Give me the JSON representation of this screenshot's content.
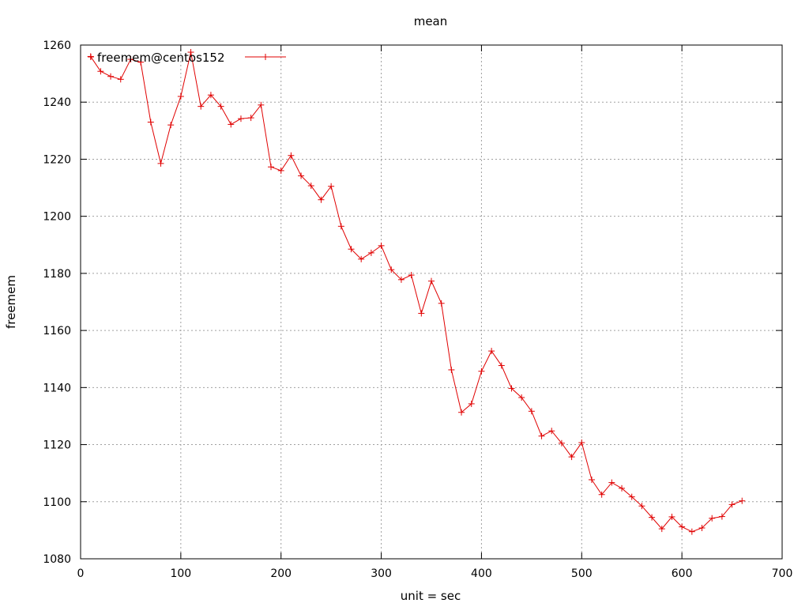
{
  "chart_data": {
    "type": "line",
    "title": "mean",
    "xlabel": "unit = sec",
    "ylabel": "freemem",
    "xlim": [
      0,
      700
    ],
    "ylim": [
      1080,
      1260
    ],
    "xticks": [
      0,
      100,
      200,
      300,
      400,
      500,
      600,
      700
    ],
    "yticks": [
      1080,
      1100,
      1120,
      1140,
      1160,
      1180,
      1200,
      1220,
      1240,
      1260
    ],
    "grid": true,
    "legend_position": "top-left",
    "series": [
      {
        "name": "freemem@centos152",
        "color": "#e00000",
        "marker": "plus",
        "x": [
          10,
          20,
          30,
          40,
          50,
          60,
          70,
          80,
          90,
          100,
          110,
          120,
          130,
          140,
          150,
          160,
          170,
          180,
          190,
          200,
          210,
          220,
          230,
          240,
          250,
          260,
          270,
          280,
          290,
          300,
          310,
          320,
          330,
          340,
          350,
          360,
          370,
          380,
          390,
          400,
          410,
          420,
          430,
          440,
          450,
          460,
          470,
          480,
          490,
          500,
          510,
          520,
          530,
          540,
          550,
          560,
          570,
          580,
          590,
          600,
          610,
          620,
          630,
          640,
          650,
          660
        ],
        "y": [
          1256,
          1250.8,
          1249,
          1248,
          1255,
          1254,
          1233,
          1218.5,
          1232,
          1242,
          1257.5,
          1238.5,
          1242.5,
          1238.5,
          1232.2,
          1234.2,
          1234.5,
          1239,
          1217.3,
          1216,
          1221.3,
          1214.2,
          1210.7,
          1205.8,
          1210.5,
          1196.5,
          1188.5,
          1185,
          1187.2,
          1189.7,
          1181.3,
          1177.8,
          1179.4,
          1166,
          1177.3,
          1169.5,
          1146.2,
          1131.3,
          1134.3,
          1145.7,
          1152.8,
          1147.7,
          1139.7,
          1136.5,
          1131.7,
          1123,
          1124.8,
          1120.5,
          1115.7,
          1120.7,
          1107.7,
          1102.5,
          1106.7,
          1104.7,
          1101.7,
          1098.5,
          1094.5,
          1090.5,
          1094.7,
          1091.2,
          1089.5,
          1090.8,
          1094.2,
          1094.8,
          1099,
          1100.3
        ]
      }
    ]
  }
}
